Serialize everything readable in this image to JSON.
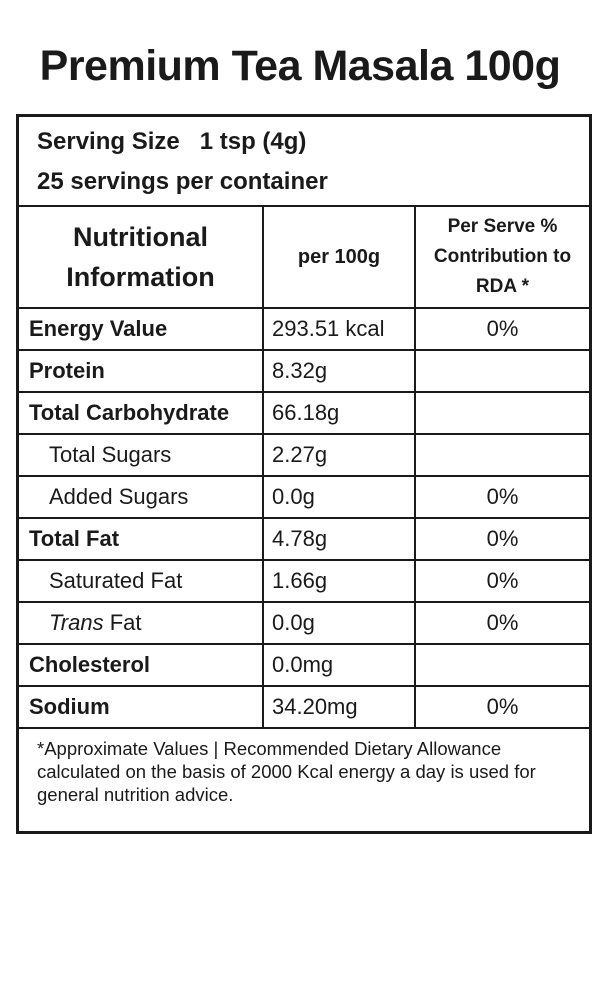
{
  "title": "Premium Tea Masala 100g",
  "serving": {
    "size_label": "Serving Size",
    "size": "1 tsp (4g)",
    "servings": "25 servings per container"
  },
  "table": {
    "header": [
      "Nutritional Information",
      "per 100g",
      "Per Serve % Contribution to RDA *"
    ],
    "rows": [
      {
        "name": "Energy Value",
        "per100g": "293.51 kcal",
        "rda": "0%"
      },
      {
        "name": "Protein",
        "per100g": "8.32g"
      },
      {
        "name": "Total Carbohydrate",
        "per100g": "66.18g"
      },
      {
        "name": "Total Sugars",
        "per100g": "2.27g",
        "sub": true
      },
      {
        "name": "Added Sugars",
        "per100g": "0.0g",
        "rda": "0%",
        "sub": true
      },
      {
        "name": "Total Fat",
        "per100g": "4.78g",
        "rda": "0%"
      },
      {
        "name": "Saturated Fat",
        "per100g": "1.66g",
        "rda": "0%",
        "sub": true
      },
      {
        "name_italic": "Trans",
        "name": "Fat",
        "per100g": "0.0g",
        "rda": "0%",
        "sub": true
      },
      {
        "name": "Cholesterol",
        "per100g": "0.0mg"
      },
      {
        "name": "Sodium",
        "per100g": "34.20mg",
        "rda": "0%"
      }
    ]
  },
  "footnote": "*Approximate Values | Recommended Dietary Allowance calculated on the basis of 2000 Kcal energy a day is used for general nutrition advice."
}
